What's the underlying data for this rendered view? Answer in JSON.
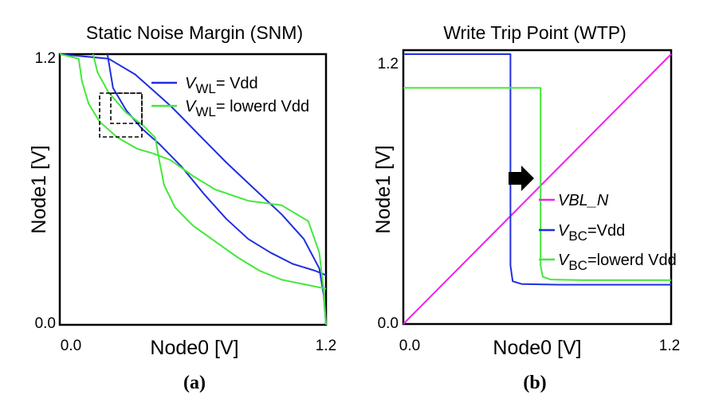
{
  "colors": {
    "blue": "#1f2ee0",
    "green": "#44e83a",
    "magenta": "#ee22ee",
    "black": "#000000"
  },
  "chart_data": [
    {
      "type": "line",
      "panel_label": "(a)",
      "title": "Static Noise Margin (SNM)",
      "xlabel": "Node0 [V]",
      "ylabel": "Node1 [V]",
      "xlim": [
        0,
        1.2
      ],
      "ylim": [
        0,
        1.2
      ],
      "x_ticks": [
        "0.0",
        "1.2"
      ],
      "y_ticks": [
        "0.0",
        "1.2"
      ],
      "legend": {
        "position": "top-right",
        "items": [
          {
            "prefix": "V",
            "sub": "WL",
            "text": "= Vdd",
            "color": "#1f2ee0"
          },
          {
            "prefix": "V",
            "sub": "WL",
            "text": "= lowerd Vdd",
            "color": "#44e83a"
          }
        ]
      },
      "series": [
        {
          "name": "V_WL= Vdd",
          "color": "#1f2ee0",
          "curves": [
            [
              [
                0.215,
                1.2
              ],
              [
                0.24,
                1.05
              ],
              [
                0.3,
                0.95
              ],
              [
                0.37,
                0.87
              ],
              [
                0.45,
                0.8
              ],
              [
                0.55,
                0.7
              ],
              [
                0.65,
                0.58
              ],
              [
                0.75,
                0.47
              ],
              [
                0.85,
                0.38
              ],
              [
                0.95,
                0.32
              ],
              [
                1.05,
                0.27
              ],
              [
                1.15,
                0.24
              ],
              [
                1.2,
                0.22
              ]
            ],
            [
              [
                1.2,
                0.0
              ],
              [
                1.19,
                0.13
              ],
              [
                1.17,
                0.25
              ],
              [
                1.1,
                0.38
              ],
              [
                1.0,
                0.49
              ],
              [
                0.88,
                0.6
              ],
              [
                0.75,
                0.72
              ],
              [
                0.65,
                0.82
              ],
              [
                0.57,
                0.9
              ],
              [
                0.5,
                0.97
              ],
              [
                0.42,
                1.04
              ],
              [
                0.34,
                1.11
              ],
              [
                0.22,
                1.18
              ],
              [
                0.0,
                1.2
              ]
            ]
          ]
        },
        {
          "name": "V_WL= lowerd Vdd",
          "color": "#44e83a",
          "curves": [
            [
              [
                0.15,
                1.2
              ],
              [
                0.17,
                1.12
              ],
              [
                0.22,
                1.03
              ],
              [
                0.3,
                0.94
              ],
              [
                0.38,
                0.88
              ],
              [
                0.43,
                0.83
              ],
              [
                0.45,
                0.72
              ],
              [
                0.47,
                0.62
              ],
              [
                0.52,
                0.52
              ],
              [
                0.6,
                0.44
              ],
              [
                0.7,
                0.37
              ],
              [
                0.8,
                0.3
              ],
              [
                0.9,
                0.24
              ],
              [
                1.0,
                0.2
              ],
              [
                1.1,
                0.18
              ],
              [
                1.2,
                0.16
              ]
            ],
            [
              [
                1.2,
                0.0
              ],
              [
                1.19,
                0.15
              ],
              [
                1.17,
                0.32
              ],
              [
                1.12,
                0.46
              ],
              [
                1.0,
                0.53
              ],
              [
                0.85,
                0.55
              ],
              [
                0.7,
                0.6
              ],
              [
                0.6,
                0.66
              ],
              [
                0.5,
                0.73
              ],
              [
                0.42,
                0.76
              ],
              [
                0.35,
                0.78
              ],
              [
                0.26,
                0.83
              ],
              [
                0.18,
                0.9
              ],
              [
                0.13,
                0.98
              ],
              [
                0.1,
                1.08
              ],
              [
                0.085,
                1.18
              ],
              [
                0.0,
                1.2
              ]
            ]
          ]
        }
      ]
    },
    {
      "type": "line",
      "panel_label": "(b)",
      "title": "Write Trip Point (WTP)",
      "xlabel": "Node0 [V]",
      "ylabel": "Node1 [V]",
      "xlim": [
        0,
        1.2
      ],
      "ylim": [
        0,
        1.2
      ],
      "x_ticks": [
        "0.0",
        "1.2"
      ],
      "y_ticks": [
        "0.0",
        "1.2"
      ],
      "legend": {
        "position": "bottom-right",
        "items": [
          {
            "prefix": "VBL_N",
            "sub": "",
            "text": "",
            "color": "#ee22ee"
          },
          {
            "prefix": "V",
            "sub": "BC",
            "text": "=Vdd",
            "color": "#1f2ee0"
          },
          {
            "prefix": "V",
            "sub": "BC",
            "text": "=lowerd Vdd",
            "color": "#44e83a"
          }
        ]
      },
      "series": [
        {
          "name": "VBL_N",
          "color": "#ee22ee",
          "curves": [
            [
              [
                0.0,
                0.0
              ],
              [
                1.2,
                1.2
              ]
            ]
          ]
        },
        {
          "name": "V_BC=Vdd",
          "color": "#1f2ee0",
          "curves": [
            [
              [
                0.0,
                1.2
              ],
              [
                0.48,
                1.2
              ],
              [
                0.48,
                0.26
              ],
              [
                0.49,
                0.19
              ],
              [
                0.53,
                0.178
              ],
              [
                0.7,
                0.175
              ],
              [
                1.2,
                0.175
              ]
            ]
          ]
        },
        {
          "name": "V_BC=lowerd Vdd",
          "color": "#44e83a",
          "curves": [
            [
              [
                0.0,
                1.05
              ],
              [
                0.615,
                1.05
              ],
              [
                0.615,
                0.26
              ],
              [
                0.625,
                0.21
              ],
              [
                0.66,
                0.198
              ],
              [
                0.8,
                0.195
              ],
              [
                1.2,
                0.195
              ]
            ]
          ]
        }
      ]
    }
  ]
}
